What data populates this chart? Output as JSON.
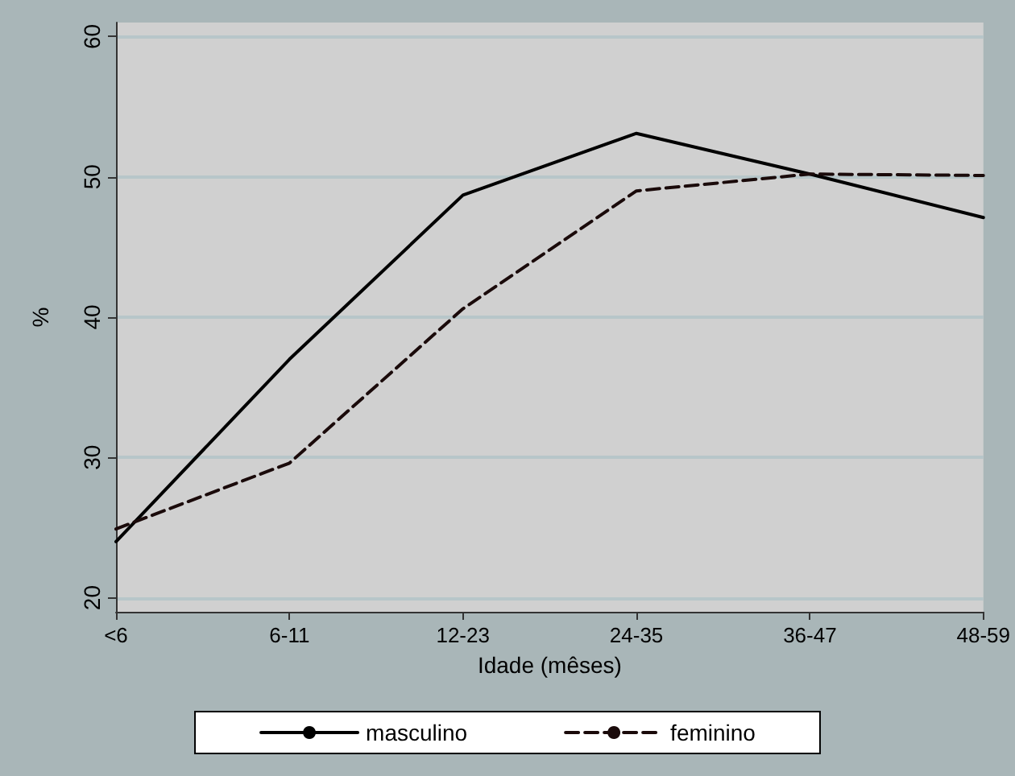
{
  "chart_data": {
    "type": "line",
    "xlabel": "Idade (mêses)",
    "ylabel": "%",
    "categories": [
      "<6",
      "6-11",
      "12-23",
      "24-35",
      "36-47",
      "48-59"
    ],
    "series": [
      {
        "name": "masculino",
        "color": "#000000",
        "line_style": "solid",
        "values": [
          24.0,
          37.0,
          48.7,
          53.1,
          50.2,
          47.1
        ]
      },
      {
        "name": "feminino",
        "color": "#1a0a0a",
        "line_style": "dashed",
        "values": [
          24.9,
          29.6,
          40.6,
          49.0,
          50.2,
          50.1
        ]
      }
    ],
    "ylim": [
      19,
      61
    ],
    "yticks": [
      20,
      30,
      40,
      50,
      60
    ],
    "grid": "y",
    "legend": "bottom",
    "marker": "none"
  }
}
